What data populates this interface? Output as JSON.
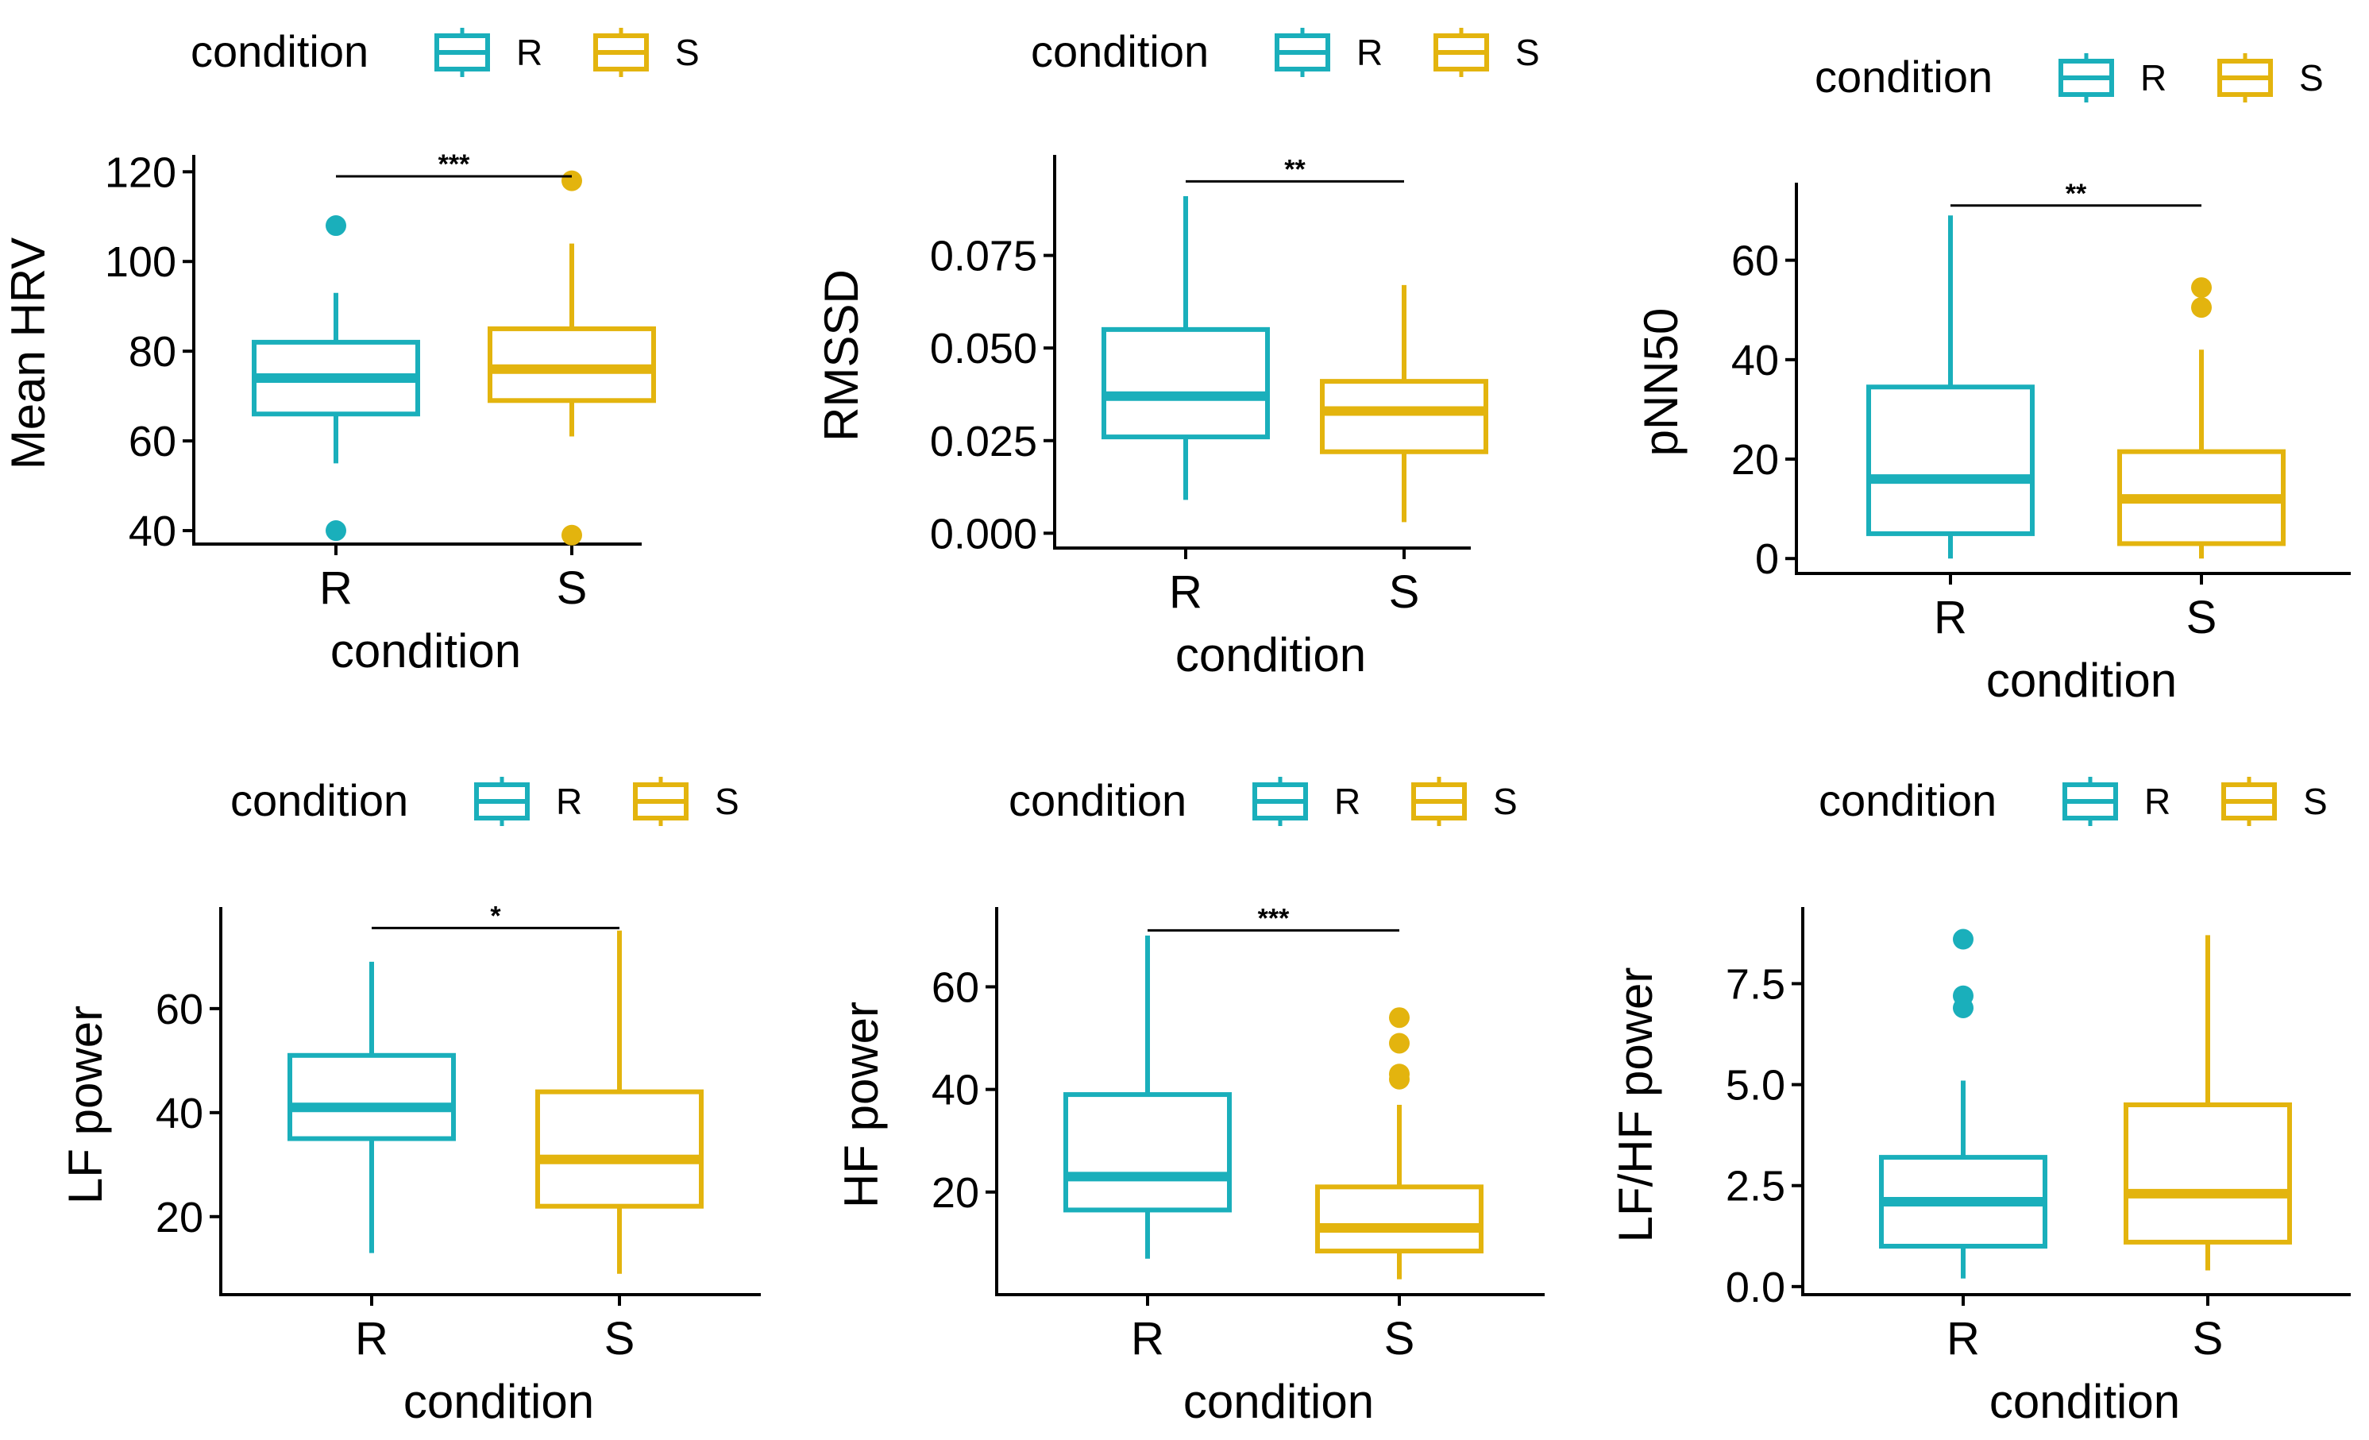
{
  "colors": {
    "R": "#1AAFBB",
    "S": "#E3B40E",
    "axis": "#000000"
  },
  "legend": {
    "title": "condition",
    "items": [
      "R",
      "S"
    ]
  },
  "chart_data": [
    {
      "type": "box",
      "id": "mean-hrv",
      "ylabel": "Mean HRV",
      "xlabel": "condition",
      "categories": [
        "R",
        "S"
      ],
      "ylim": [
        37,
        122
      ],
      "yticks": [
        40,
        60,
        80,
        100,
        120
      ],
      "tick_labels": [
        "40",
        "60",
        "80",
        "100",
        "120"
      ],
      "boxes": [
        {
          "name": "R",
          "whisker_low": 55,
          "q1": 66,
          "median": 74,
          "q3": 82,
          "whisker_high": 93,
          "outliers": [
            108,
            40
          ]
        },
        {
          "name": "S",
          "whisker_low": 61,
          "q1": 69,
          "median": 76,
          "q3": 85,
          "whisker_high": 104,
          "outliers": [
            118,
            39
          ]
        }
      ],
      "significance": {
        "label": "***",
        "value": 119
      }
    },
    {
      "type": "box",
      "id": "rmssd",
      "ylabel": "RMSSD",
      "xlabel": "condition",
      "categories": [
        "R",
        "S"
      ],
      "ylim": [
        -0.004,
        0.1
      ],
      "yticks": [
        0,
        0.025,
        0.05,
        0.075
      ],
      "tick_labels": [
        "0.000",
        "0.025",
        "0.050",
        "0.075"
      ],
      "boxes": [
        {
          "name": "R",
          "whisker_low": 0.009,
          "q1": 0.026,
          "median": 0.037,
          "q3": 0.055,
          "whisker_high": 0.091,
          "outliers": []
        },
        {
          "name": "S",
          "whisker_low": 0.003,
          "q1": 0.022,
          "median": 0.033,
          "q3": 0.041,
          "whisker_high": 0.067,
          "outliers": []
        }
      ],
      "significance": {
        "label": "**",
        "value": 0.095
      }
    },
    {
      "type": "box",
      "id": "pnn50",
      "ylabel": "pNN50",
      "xlabel": "condition",
      "categories": [
        "R",
        "S"
      ],
      "ylim": [
        -3,
        74
      ],
      "yticks": [
        0,
        20,
        40,
        60
      ],
      "tick_labels": [
        "0",
        "20",
        "40",
        "60"
      ],
      "boxes": [
        {
          "name": "R",
          "whisker_low": 0,
          "q1": 5,
          "median": 16,
          "q3": 34.5,
          "whisker_high": 69,
          "outliers": []
        },
        {
          "name": "S",
          "whisker_low": 0,
          "q1": 3,
          "median": 12,
          "q3": 21.5,
          "whisker_high": 42,
          "outliers": [
            54.5,
            50.5
          ]
        }
      ],
      "significance": {
        "label": "**",
        "value": 71
      }
    },
    {
      "type": "box",
      "id": "lf-power",
      "ylabel": "LF power",
      "xlabel": "condition",
      "categories": [
        "R",
        "S"
      ],
      "ylim": [
        5,
        78
      ],
      "yticks": [
        20,
        40,
        60
      ],
      "tick_labels": [
        "20",
        "40",
        "60"
      ],
      "boxes": [
        {
          "name": "R",
          "whisker_low": 13,
          "q1": 35,
          "median": 41,
          "q3": 51,
          "whisker_high": 69,
          "outliers": []
        },
        {
          "name": "S",
          "whisker_low": 9,
          "q1": 22,
          "median": 31,
          "q3": 44,
          "whisker_high": 75,
          "outliers": []
        }
      ],
      "significance": {
        "label": "*",
        "value": 75.5
      }
    },
    {
      "type": "box",
      "id": "hf-power",
      "ylabel": "HF power",
      "xlabel": "condition",
      "categories": [
        "R",
        "S"
      ],
      "ylim": [
        0,
        74
      ],
      "yticks": [
        20,
        40,
        60
      ],
      "tick_labels": [
        "20",
        "40",
        "60"
      ],
      "boxes": [
        {
          "name": "R",
          "whisker_low": 7,
          "q1": 16.5,
          "median": 23,
          "q3": 39,
          "whisker_high": 70,
          "outliers": []
        },
        {
          "name": "S",
          "whisker_low": 3,
          "q1": 8.5,
          "median": 13,
          "q3": 21,
          "whisker_high": 37,
          "outliers": [
            54,
            49,
            43,
            42
          ]
        }
      ],
      "significance": {
        "label": "***",
        "value": 71
      }
    },
    {
      "type": "box",
      "id": "lf-hf-power",
      "ylabel": "LF/HF power",
      "xlabel": "condition",
      "categories": [
        "R",
        "S"
      ],
      "ylim": [
        -0.2,
        9.2
      ],
      "yticks": [
        0,
        2.5,
        5,
        7.5
      ],
      "tick_labels": [
        "0.0",
        "2.5",
        "5.0",
        "7.5"
      ],
      "boxes": [
        {
          "name": "R",
          "whisker_low": 0.2,
          "q1": 1.0,
          "median": 2.1,
          "q3": 3.2,
          "whisker_high": 5.1,
          "outliers": [
            8.6,
            7.2,
            6.9
          ]
        },
        {
          "name": "S",
          "whisker_low": 0.4,
          "q1": 1.1,
          "median": 2.3,
          "q3": 4.5,
          "whisker_high": 8.7,
          "outliers": []
        }
      ],
      "significance": null
    }
  ]
}
